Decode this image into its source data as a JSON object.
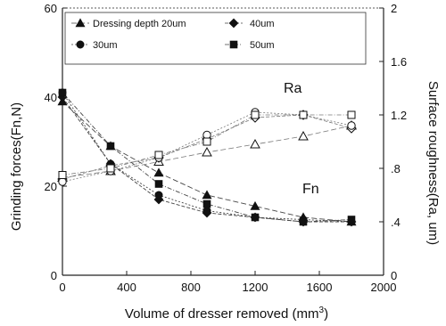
{
  "chart_data": {
    "type": "line",
    "title": "",
    "xlabel": "Volume of dresser removed (mm",
    "xlabel_sup": "3",
    "xlabel_close": ")",
    "ylabel_left": "Grinding forces(Fn,N)",
    "ylabel_right": "Surface roughness(Ra, um)",
    "xlim": [
      0,
      2000
    ],
    "ylim_left": [
      0,
      60
    ],
    "ylim_right": [
      0,
      2
    ],
    "x_ticks": [
      "0",
      "400",
      "800",
      "1200",
      "1600",
      "2000"
    ],
    "y_left_ticks": [
      "0",
      "20",
      "40",
      "60"
    ],
    "y_right_ticks": [
      "0",
      ".4",
      ".8",
      "1.2",
      "1.6",
      "2"
    ],
    "grid": false,
    "legend_placement": "top-left",
    "annotations": {
      "ra": "Ra",
      "fn": "Fn"
    },
    "x": [
      0,
      300,
      600,
      900,
      1200,
      1500,
      1800
    ],
    "series": [
      {
        "name": "Dressing depth 20um",
        "marker": "triangle",
        "fn": [
          39,
          29,
          23,
          18,
          15.5,
          13,
          12
        ],
        "ra": [
          0.73,
          0.78,
          0.85,
          0.92,
          0.98,
          1.04,
          1.12
        ]
      },
      {
        "name": "40um",
        "marker": "diamond",
        "fn": [
          40,
          25,
          17,
          14,
          13,
          12,
          12
        ],
        "ra": [
          0.72,
          0.82,
          0.88,
          1.02,
          1.18,
          1.2,
          1.1
        ]
      },
      {
        "name": "30um",
        "marker": "circle",
        "fn": [
          41,
          25,
          18,
          14.5,
          13,
          12.5,
          12
        ],
        "ra": [
          0.7,
          0.78,
          0.88,
          1.05,
          1.22,
          1.2,
          1.12
        ]
      },
      {
        "name": "50um",
        "marker": "square",
        "fn": [
          41,
          29,
          20.5,
          16,
          13,
          12,
          12.5
        ],
        "ra": [
          0.75,
          0.8,
          0.9,
          1.0,
          1.2,
          1.2,
          1.2
        ]
      }
    ]
  }
}
